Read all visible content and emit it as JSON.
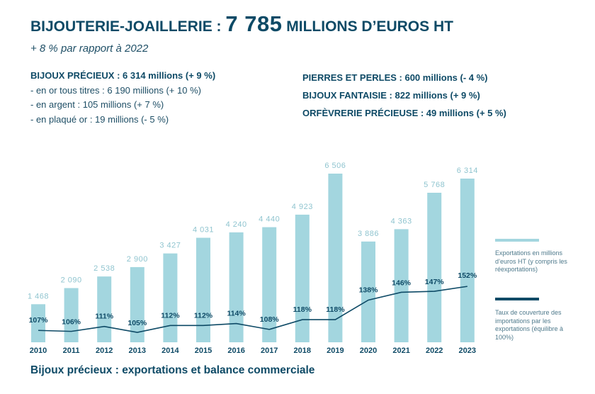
{
  "header": {
    "title_prefix": "BIJOUTERIE-JOAILLERIE : ",
    "title_value": "7 785",
    "title_suffix": " MILLIONS D’EUROS HT",
    "subtitle": "+ 8 % par rapport à 2022"
  },
  "left_block": {
    "heading": "BIJOUX PRÉCIEUX : 6 314 millions (+ 9 %)",
    "items": [
      "- en or tous titres : 6 190 millions (+ 10 %)",
      "- en argent : 105 millions (+ 7 %)",
      "- en plaqué or : 19 millions (- 5 %)"
    ]
  },
  "right_block": {
    "items": [
      "PIERRES ET PERLES : 600 millions (- 4 %)",
      "BIJOUX FANTAISIE : 822 millions (+ 9 %)",
      "ORFÈVRERIE PRÉCIEUSE : 49 millions (+ 5 %)"
    ]
  },
  "legend": {
    "bars": "Exportations en millions d’euros HT (y compris les réexportations)",
    "line": "Taux de couverture des importations par les exportations (équilibre à 100%)"
  },
  "colors": {
    "bar": "#a3d6df",
    "bar_label": "#8fc4cf",
    "line": "#0e4a66",
    "text": "#0e4a66"
  },
  "chart_data": {
    "type": "bar",
    "categories": [
      "2010",
      "2011",
      "2012",
      "2013",
      "2014",
      "2015",
      "2016",
      "2017",
      "2018",
      "2019",
      "2020",
      "2021",
      "2022",
      "2023"
    ],
    "series": [
      {
        "name": "Exportations en millions d’euros HT (y compris les réexportations)",
        "type": "bar",
        "values": [
          1468,
          2090,
          2538,
          2900,
          3427,
          4031,
          4240,
          4440,
          4923,
          6506,
          3886,
          4363,
          5768,
          6314
        ],
        "labels": [
          "1 468",
          "2 090",
          "2 538",
          "2 900",
          "3 427",
          "4 031",
          "4 240",
          "4 440",
          "4 923",
          "6 506",
          "3 886",
          "4 363",
          "5 768",
          "6 314"
        ]
      },
      {
        "name": "Taux de couverture des importations par les exportations (équilibre à 100%)",
        "type": "line",
        "values": [
          107,
          106,
          111,
          105,
          112,
          112,
          114,
          108,
          118,
          118,
          138,
          146,
          147,
          152
        ],
        "labels": [
          "107%",
          "106%",
          "111%",
          "105%",
          "112%",
          "112%",
          "114%",
          "108%",
          "118%",
          "118%",
          "138%",
          "146%",
          "147%",
          "152%"
        ]
      }
    ],
    "title": "Bijoux précieux : exportations et balance commerciale",
    "grid": false,
    "legend_position": "right"
  }
}
